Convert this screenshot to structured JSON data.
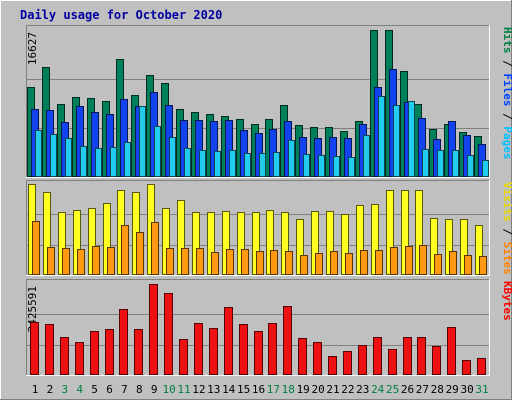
{
  "chart_data": {
    "type": "bar",
    "title": "Daily usage for October 2020",
    "categories": [
      "1",
      "2",
      "3",
      "4",
      "5",
      "6",
      "7",
      "8",
      "9",
      "10",
      "11",
      "12",
      "13",
      "14",
      "15",
      "16",
      "17",
      "18",
      "19",
      "20",
      "21",
      "22",
      "23",
      "24",
      "25",
      "26",
      "27",
      "28",
      "29",
      "30",
      "31"
    ],
    "weekend_days": [
      "3",
      "4",
      "10",
      "11",
      "17",
      "18",
      "24",
      "25",
      "31"
    ],
    "panels": [
      {
        "id": "top",
        "max_label": "16627",
        "ymax": 16627,
        "legend": [
          {
            "text": "Hits",
            "color": "#008040"
          },
          {
            "text": " / ",
            "color": "#000000"
          },
          {
            "text": "Files",
            "color": "#0040ff"
          },
          {
            "text": " / ",
            "color": "#000000"
          },
          {
            "text": "Pages",
            "color": "#00c0ff"
          }
        ],
        "series": [
          {
            "name": "Hits",
            "color": "#00805a",
            "values": [
              10200,
              12400,
              8300,
              9000,
              8900,
              8600,
              13400,
              9300,
              11500,
              10600,
              7700,
              7300,
              7100,
              6900,
              6600,
              6000,
              6600,
              8200,
              5900,
              5600,
              5600,
              5200,
              6300,
              16600,
              16600,
              12000,
              8300,
              5400,
              6000,
              5100,
              4600
            ]
          },
          {
            "name": "Files",
            "color": "#1144ee",
            "values": [
              7700,
              7600,
              6200,
              8000,
              7300,
              7100,
              8800,
              8000,
              9600,
              8100,
              6400,
              6400,
              6300,
              6500,
              5300,
              5000,
              5400,
              6300,
              4500,
              4400,
              4500,
              4400,
              6000,
              10200,
              12200,
              8500,
              6700,
              4300,
              6300,
              4700,
              3700
            ]
          },
          {
            "name": "Pages",
            "color": "#22ccee",
            "values": [
              5300,
              4900,
              4400,
              3500,
              3300,
              3400,
              4000,
              8000,
              5800,
              4500,
              3300,
              3100,
              2900,
              3000,
              2700,
              2700,
              2800,
              4200,
              2600,
              2500,
              2400,
              2300,
              4800,
              9200,
              8200,
              8600,
              3200,
              3000,
              3000,
              2500,
              1900
            ]
          }
        ]
      },
      {
        "id": "mid",
        "max_label": "1733",
        "ymax": 1733,
        "legend": [
          {
            "text": "Visits",
            "color": "#e8d800"
          },
          {
            "text": " / ",
            "color": "#000000"
          },
          {
            "text": "Sites",
            "color": "#ff8000"
          }
        ],
        "series": [
          {
            "name": "Visits",
            "color": "#ffff22",
            "values": [
              1733,
              1580,
              1200,
              1230,
              1270,
              1370,
              1620,
              1580,
              1733,
              1280,
              1430,
              1200,
              1200,
              1220,
              1200,
              1200,
              1240,
              1200,
              1070,
              1220,
              1220,
              1160,
              1340,
              1350,
              1620,
              1620,
              1620,
              1090,
              1060,
              1070,
              960
            ]
          },
          {
            "name": "Sites",
            "color": "#ff9911",
            "values": [
              1020,
              530,
              520,
              490,
              560,
              540,
              960,
              820,
              1000,
              510,
              520,
              510,
              440,
              500,
              500,
              450,
              470,
              450,
              390,
              410,
              460,
              420,
              480,
              480,
              540,
              560,
              580,
              400,
              450,
              390,
              370
            ]
          }
        ]
      },
      {
        "id": "bot",
        "max_label": "2425591",
        "ymax": 2425591,
        "legend": [
          {
            "text": "KBytes",
            "color": "#ff0000"
          }
        ],
        "series": [
          {
            "name": "KBytes",
            "color": "#ee1111",
            "values": [
              1410000,
              1360000,
              1020000,
              880000,
              1160000,
              1220000,
              1760000,
              1220000,
              2425591,
              2180000,
              950000,
              1390000,
              1260000,
              1800000,
              1350000,
              1170000,
              1390000,
              1850000,
              990000,
              890000,
              510000,
              650000,
              800000,
              1010000,
              690000,
              1010000,
              1010000,
              780000,
              1270000,
              390000,
              460000
            ]
          }
        ]
      }
    ]
  }
}
